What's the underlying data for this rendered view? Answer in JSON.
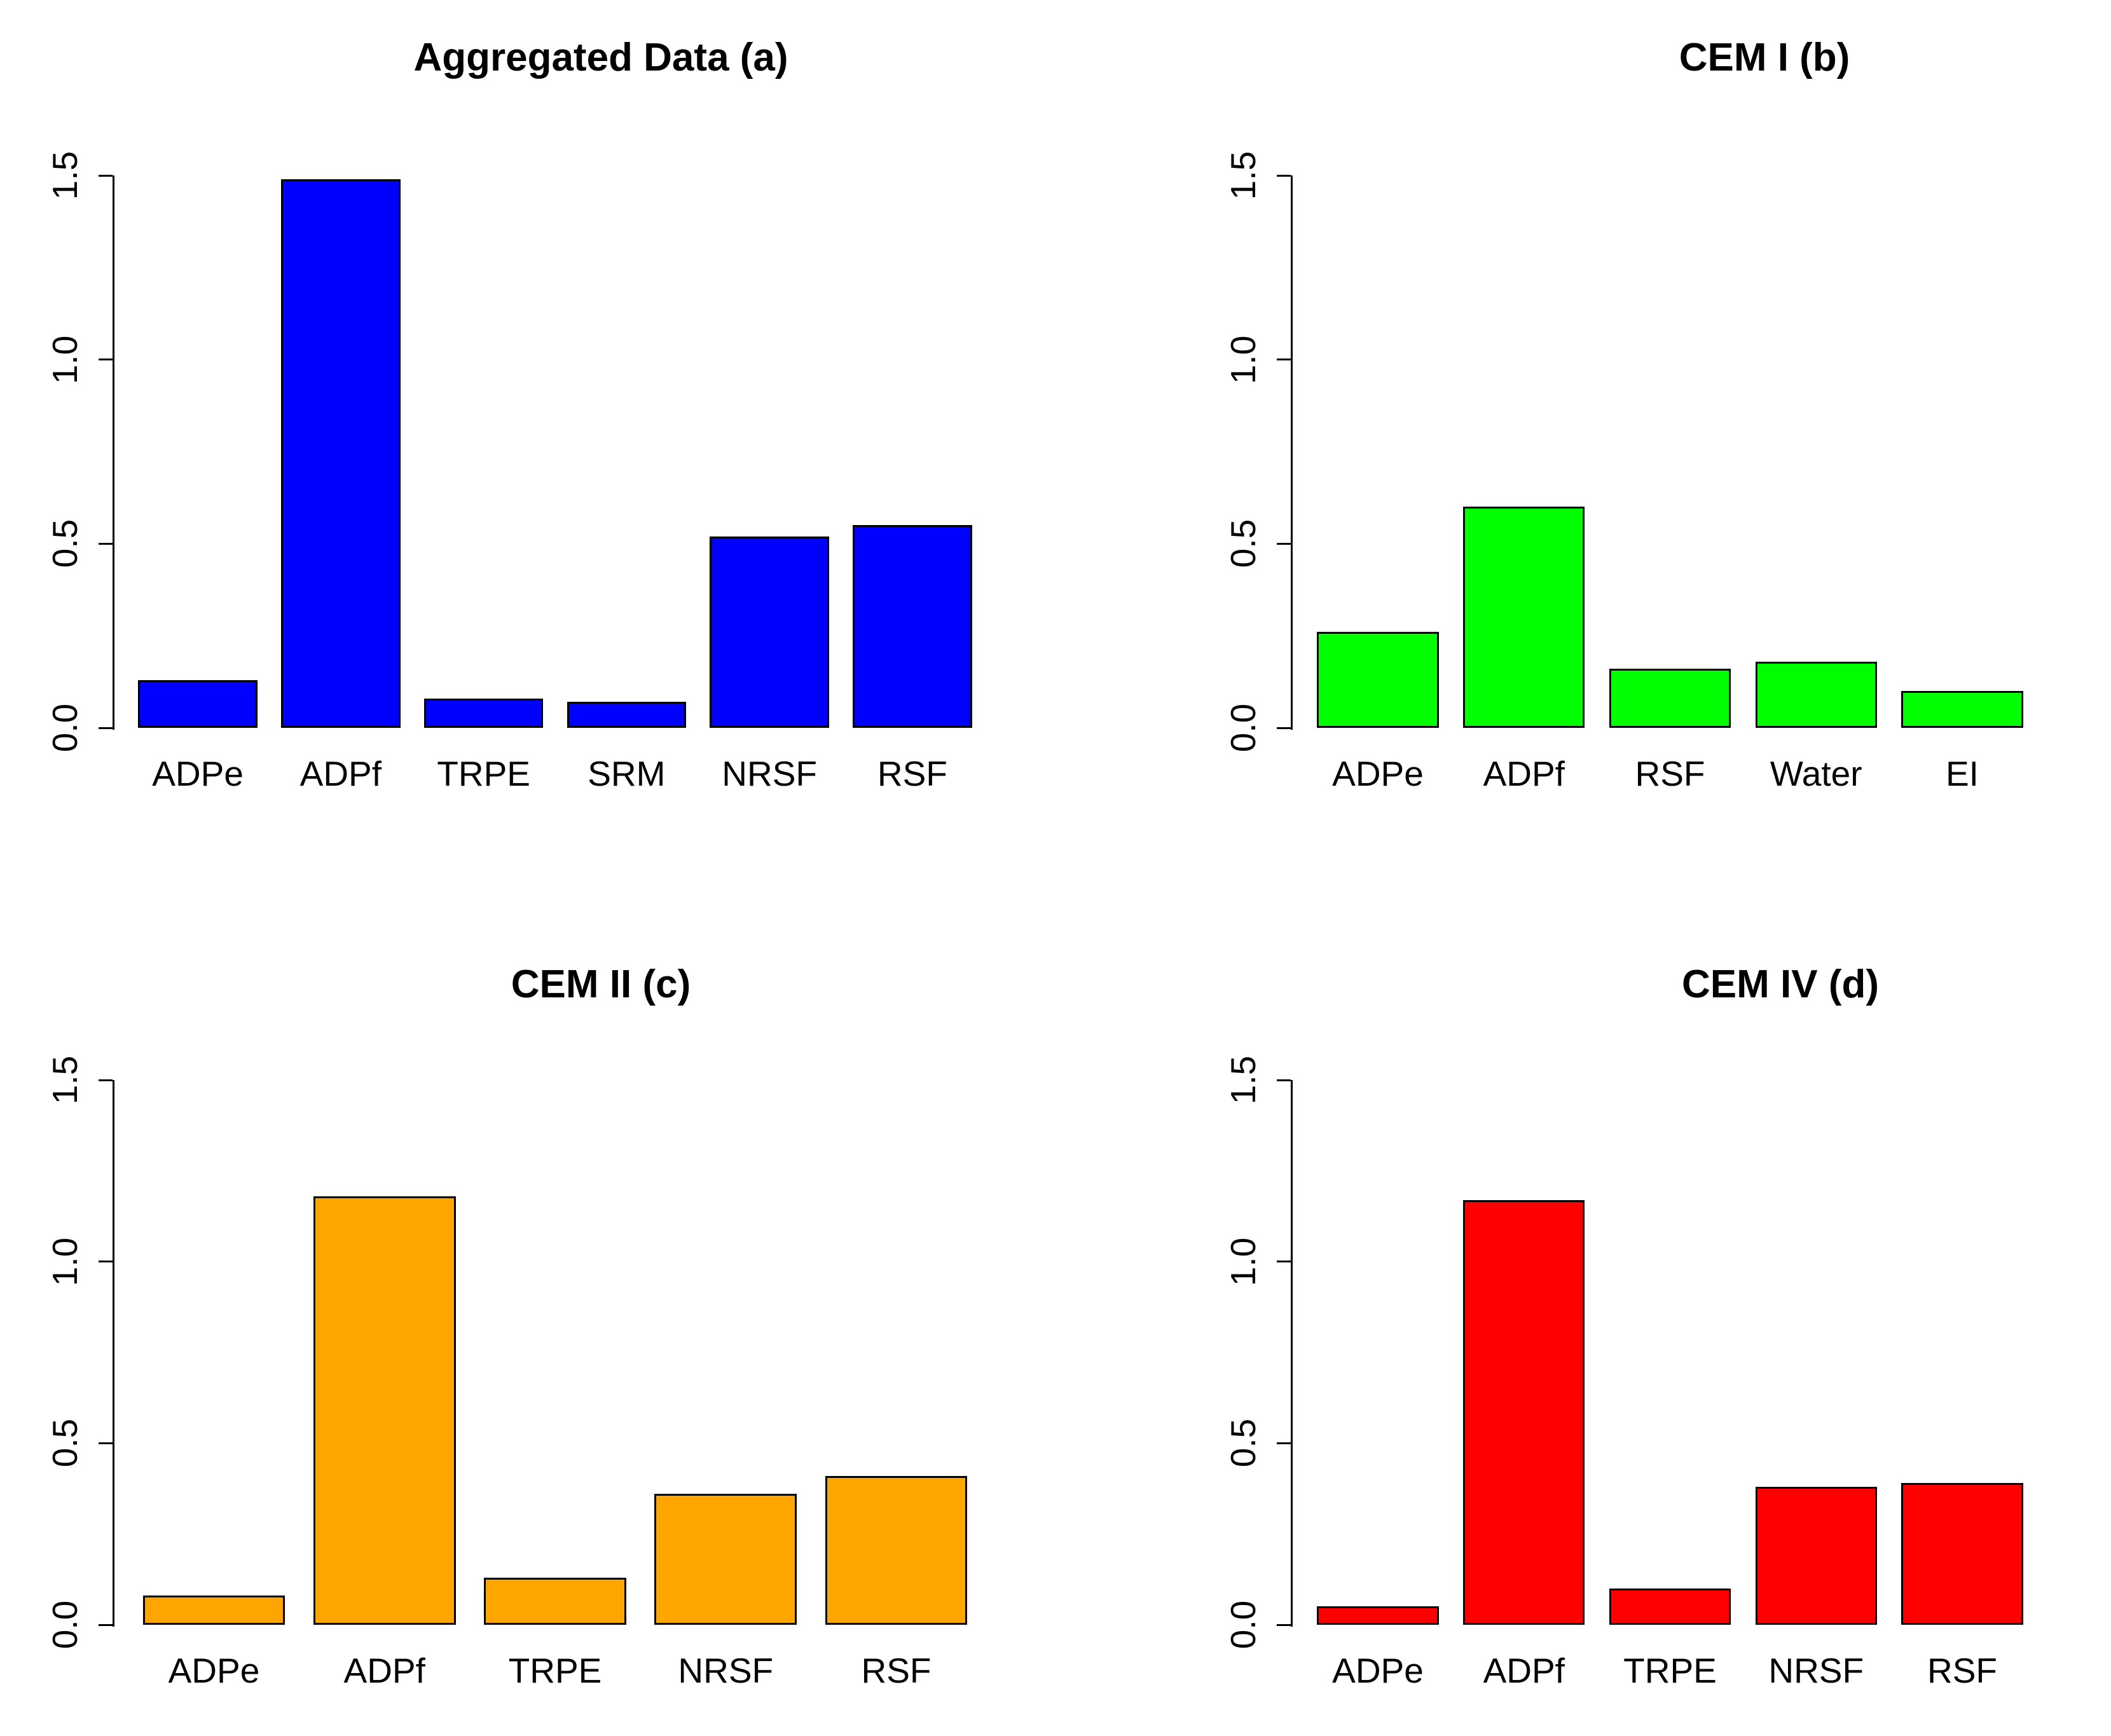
{
  "page": {
    "background": "#ffffff",
    "axis_color": "#000000",
    "text_color": "#000000"
  },
  "chart_data": [
    {
      "type": "bar",
      "title": "Aggregated Data (a)",
      "panel_letter": "a",
      "position": "top-left",
      "categories": [
        "ADPe",
        "ADPf",
        "TRPE",
        "SRM",
        "NRSF",
        "RSF"
      ],
      "values": [
        0.13,
        1.49,
        0.08,
        0.07,
        0.52,
        0.55
      ],
      "bar_color": "#0000ff",
      "bar_border_color": "#000000",
      "xlabel": "",
      "ylabel": "",
      "ylim": [
        0,
        1.5
      ],
      "yticks": [
        0.0,
        0.5,
        1.0,
        1.5
      ],
      "ytick_labels": [
        "0.0",
        "0.5",
        "1.0",
        "1.5"
      ],
      "grid": false,
      "legend": "none"
    },
    {
      "type": "bar",
      "title": "CEM I (b)",
      "panel_letter": "b",
      "position": "top-right",
      "categories": [
        "ADPe",
        "ADPf",
        "RSF",
        "Water",
        "EI"
      ],
      "values": [
        0.26,
        0.6,
        0.16,
        0.18,
        0.1
      ],
      "bar_color": "#00ff00",
      "bar_border_color": "#000000",
      "xlabel": "",
      "ylabel": "",
      "ylim": [
        0,
        1.5
      ],
      "yticks": [
        0.0,
        0.5,
        1.0,
        1.5
      ],
      "ytick_labels": [
        "0.0",
        "0.5",
        "1.0",
        "1.5"
      ],
      "grid": false,
      "legend": "none"
    },
    {
      "type": "bar",
      "title": "CEM II (c)",
      "panel_letter": "c",
      "position": "bottom-left",
      "categories": [
        "ADPe",
        "ADPf",
        "TRPE",
        "NRSF",
        "RSF"
      ],
      "values": [
        0.08,
        1.18,
        0.13,
        0.36,
        0.41
      ],
      "bar_color": "#ffa500",
      "bar_border_color": "#000000",
      "xlabel": "",
      "ylabel": "",
      "ylim": [
        0,
        1.5
      ],
      "yticks": [
        0.0,
        0.5,
        1.0,
        1.5
      ],
      "ytick_labels": [
        "0.0",
        "0.5",
        "1.0",
        "1.5"
      ],
      "grid": false,
      "legend": "none"
    },
    {
      "type": "bar",
      "title": "CEM IV (d)",
      "panel_letter": "d",
      "position": "bottom-right",
      "categories": [
        "ADPe",
        "ADPf",
        "TRPE",
        "NRSF",
        "RSF"
      ],
      "values": [
        0.05,
        1.17,
        0.1,
        0.38,
        0.39
      ],
      "bar_color": "#ff0000",
      "bar_border_color": "#000000",
      "xlabel": "",
      "ylabel": "",
      "ylim": [
        0,
        1.5
      ],
      "yticks": [
        0.0,
        0.5,
        1.0,
        1.5
      ],
      "ytick_labels": [
        "0.0",
        "0.5",
        "1.0",
        "1.5"
      ],
      "grid": false,
      "legend": "none"
    }
  ]
}
